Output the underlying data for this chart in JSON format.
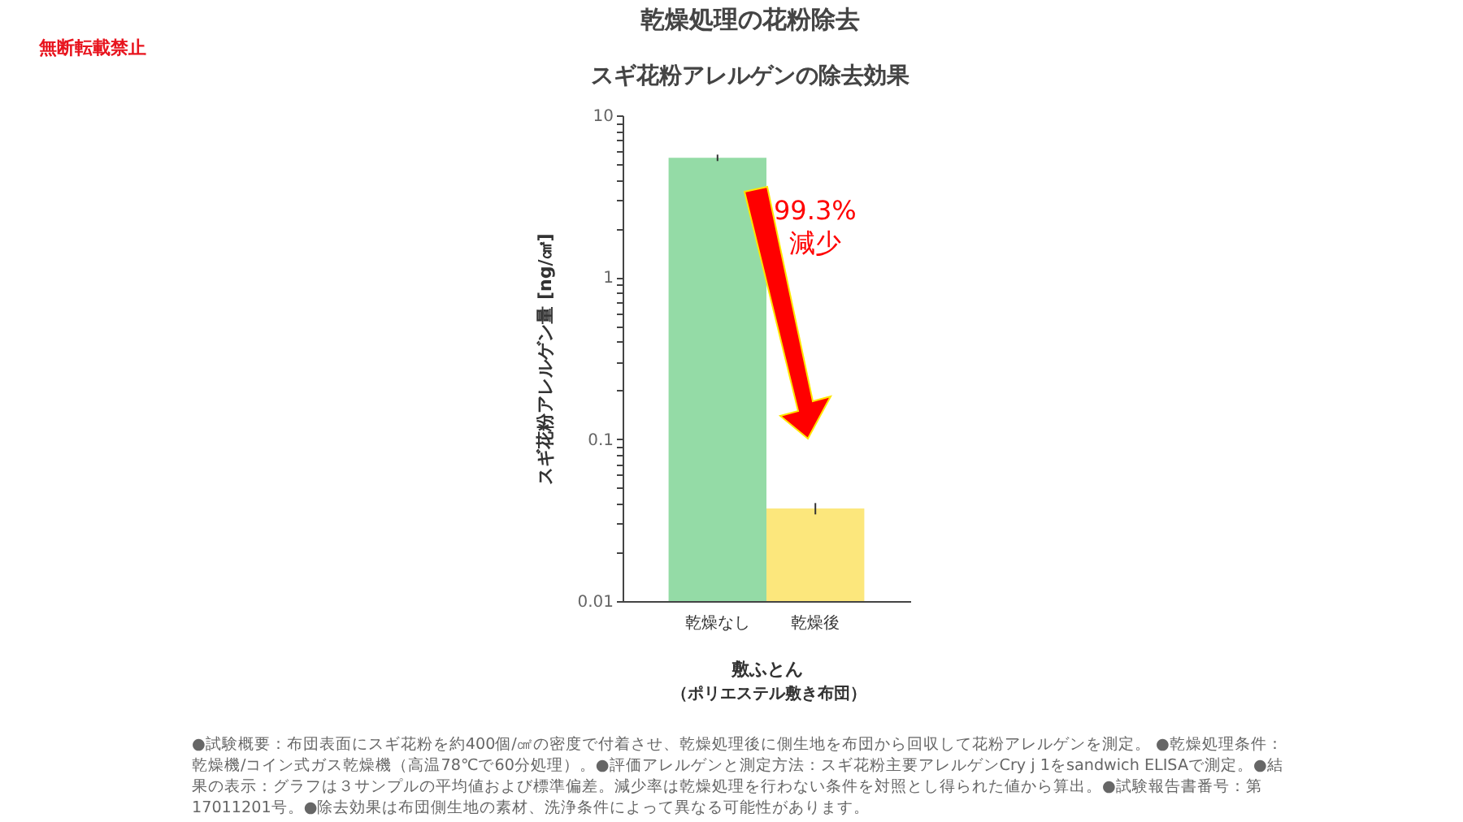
{
  "chart_data": {
    "type": "bar",
    "title": "乾燥処理の花粉除去",
    "subtitle": "スギ花粉アレルゲンの除去効果",
    "ylabel": "スギ花粉アレルゲン量 [ng/㎠]",
    "xlabel": "敷ふとん",
    "categories": [
      "乾燥なし",
      "乾燥後"
    ],
    "values": [
      5.47,
      0.0373
    ],
    "colors": [
      "#94dba6",
      "#fce77c"
    ],
    "errors": [
      0.25,
      0.003
    ],
    "log": "y",
    "ylim": [
      0.01,
      10
    ],
    "yticks": [
      0.01,
      {
        "value": 0.02,
        "label": null
      },
      {
        "value": 0.03,
        "label": null
      },
      {
        "value": 0.04,
        "label": null
      },
      {
        "value": 0.05,
        "label": null
      },
      {
        "value": 0.06,
        "label": null
      },
      {
        "value": 0.07,
        "label": null
      },
      {
        "value": 0.08,
        "label": null
      },
      {
        "value": 0.09,
        "label": null
      },
      0.1,
      {
        "value": 0.2,
        "label": null
      },
      {
        "value": 0.3,
        "label": null
      },
      {
        "value": 0.4,
        "label": null
      },
      {
        "value": 0.5,
        "label": null
      },
      {
        "value": 0.6,
        "label": null
      },
      {
        "value": 0.7,
        "label": null
      },
      {
        "value": 0.8,
        "label": null
      },
      {
        "value": 0.9,
        "label": null
      },
      1,
      {
        "value": 2,
        "label": null
      },
      {
        "value": 3,
        "label": null
      },
      {
        "value": 4,
        "label": null
      },
      {
        "value": 5,
        "label": null
      },
      {
        "value": 6,
        "label": null
      },
      {
        "value": 7,
        "label": null
      },
      {
        "value": 8,
        "label": null
      },
      {
        "value": 9,
        "label": null
      },
      10
    ],
    "grid": false,
    "legend": false,
    "annotations": [
      "無断転載禁止",
      "99.3%\n減少",
      "（ポリエステル敷き布団）",
      "●試験概要：布団表面にスギ花粉を約400個/㎠の密度で付着させ、乾燥処理後に側生地を布団から回収して花粉アレルゲンを測定。 ●乾燥処理条件：乾燥機/コイン式ガス乾燥機（高温78℃で60分処理）。●評価アレルゲンと測定方法：スギ花粉主要アレルゲンCry j 1をsandwich ELISAで測定。●結果の表示：グラフは３サンプルの平均値および標準偏差。減少率は乾燥処理を行わない条件を対照とし得られた値から算出。●試験報告書番号：第17011201号。●除去効果は布団側生地の素材、洗浄条件によって異なる可能性があります。"
    ]
  }
}
